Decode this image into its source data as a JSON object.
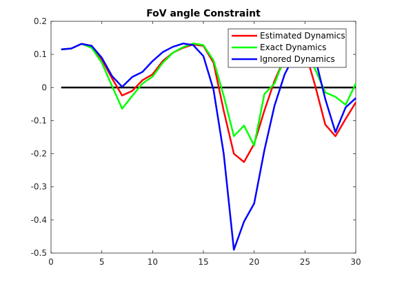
{
  "chart_data": {
    "type": "line",
    "title": "FoV angle Constraint",
    "xlabel": "",
    "ylabel": "",
    "xlim": [
      0,
      30
    ],
    "ylim": [
      -0.5,
      0.2
    ],
    "xticks": [
      0,
      5,
      10,
      15,
      20,
      25,
      30
    ],
    "yticks": [
      -0.5,
      -0.4,
      -0.3,
      -0.2,
      -0.1,
      0,
      0.1,
      0.2
    ],
    "xtick_labels": [
      "0",
      "5",
      "10",
      "15",
      "20",
      "25",
      "30"
    ],
    "ytick_labels": [
      "-0.5",
      "-0.4",
      "-0.3",
      "-0.2",
      "-0.1",
      "0",
      "0.1",
      "0.2"
    ],
    "grid": false,
    "legend_position": "top-right",
    "x": [
      1,
      2,
      3,
      4,
      5,
      6,
      7,
      8,
      9,
      10,
      11,
      12,
      13,
      14,
      15,
      16,
      17,
      18,
      19,
      20,
      21,
      22,
      23,
      24,
      25,
      26,
      27,
      28,
      29,
      30
    ],
    "reference_line": {
      "y": 0,
      "color": "#000000"
    },
    "series": [
      {
        "name": "Estimated Dynamics",
        "color": "#ff0000",
        "values": [
          0.115,
          0.118,
          0.132,
          0.126,
          0.085,
          0.028,
          -0.024,
          -0.01,
          0.022,
          0.04,
          0.08,
          0.105,
          0.12,
          0.13,
          0.126,
          0.075,
          -0.07,
          -0.2,
          -0.225,
          -0.17,
          -0.07,
          0.02,
          0.09,
          0.126,
          0.112,
          0.006,
          -0.112,
          -0.147,
          -0.095,
          -0.045
        ]
      },
      {
        "name": "Exact Dynamics",
        "color": "#00ff00",
        "values": [
          0.115,
          0.118,
          0.132,
          0.12,
          0.075,
          0.005,
          -0.064,
          -0.025,
          0.012,
          0.033,
          0.075,
          0.105,
          0.122,
          0.133,
          0.128,
          0.082,
          -0.025,
          -0.147,
          -0.115,
          -0.175,
          -0.02,
          0.012,
          0.09,
          0.126,
          0.112,
          0.055,
          -0.015,
          -0.028,
          -0.052,
          0.012
        ]
      },
      {
        "name": "Ignored Dynamics",
        "color": "#0000ff",
        "values": [
          0.115,
          0.118,
          0.132,
          0.126,
          0.09,
          0.035,
          0.002,
          0.032,
          0.047,
          0.08,
          0.107,
          0.123,
          0.133,
          0.128,
          0.095,
          -0.007,
          -0.2,
          -0.49,
          -0.405,
          -0.35,
          -0.19,
          -0.055,
          0.04,
          0.1,
          0.12,
          0.09,
          -0.035,
          -0.135,
          -0.06,
          -0.032
        ]
      }
    ]
  }
}
